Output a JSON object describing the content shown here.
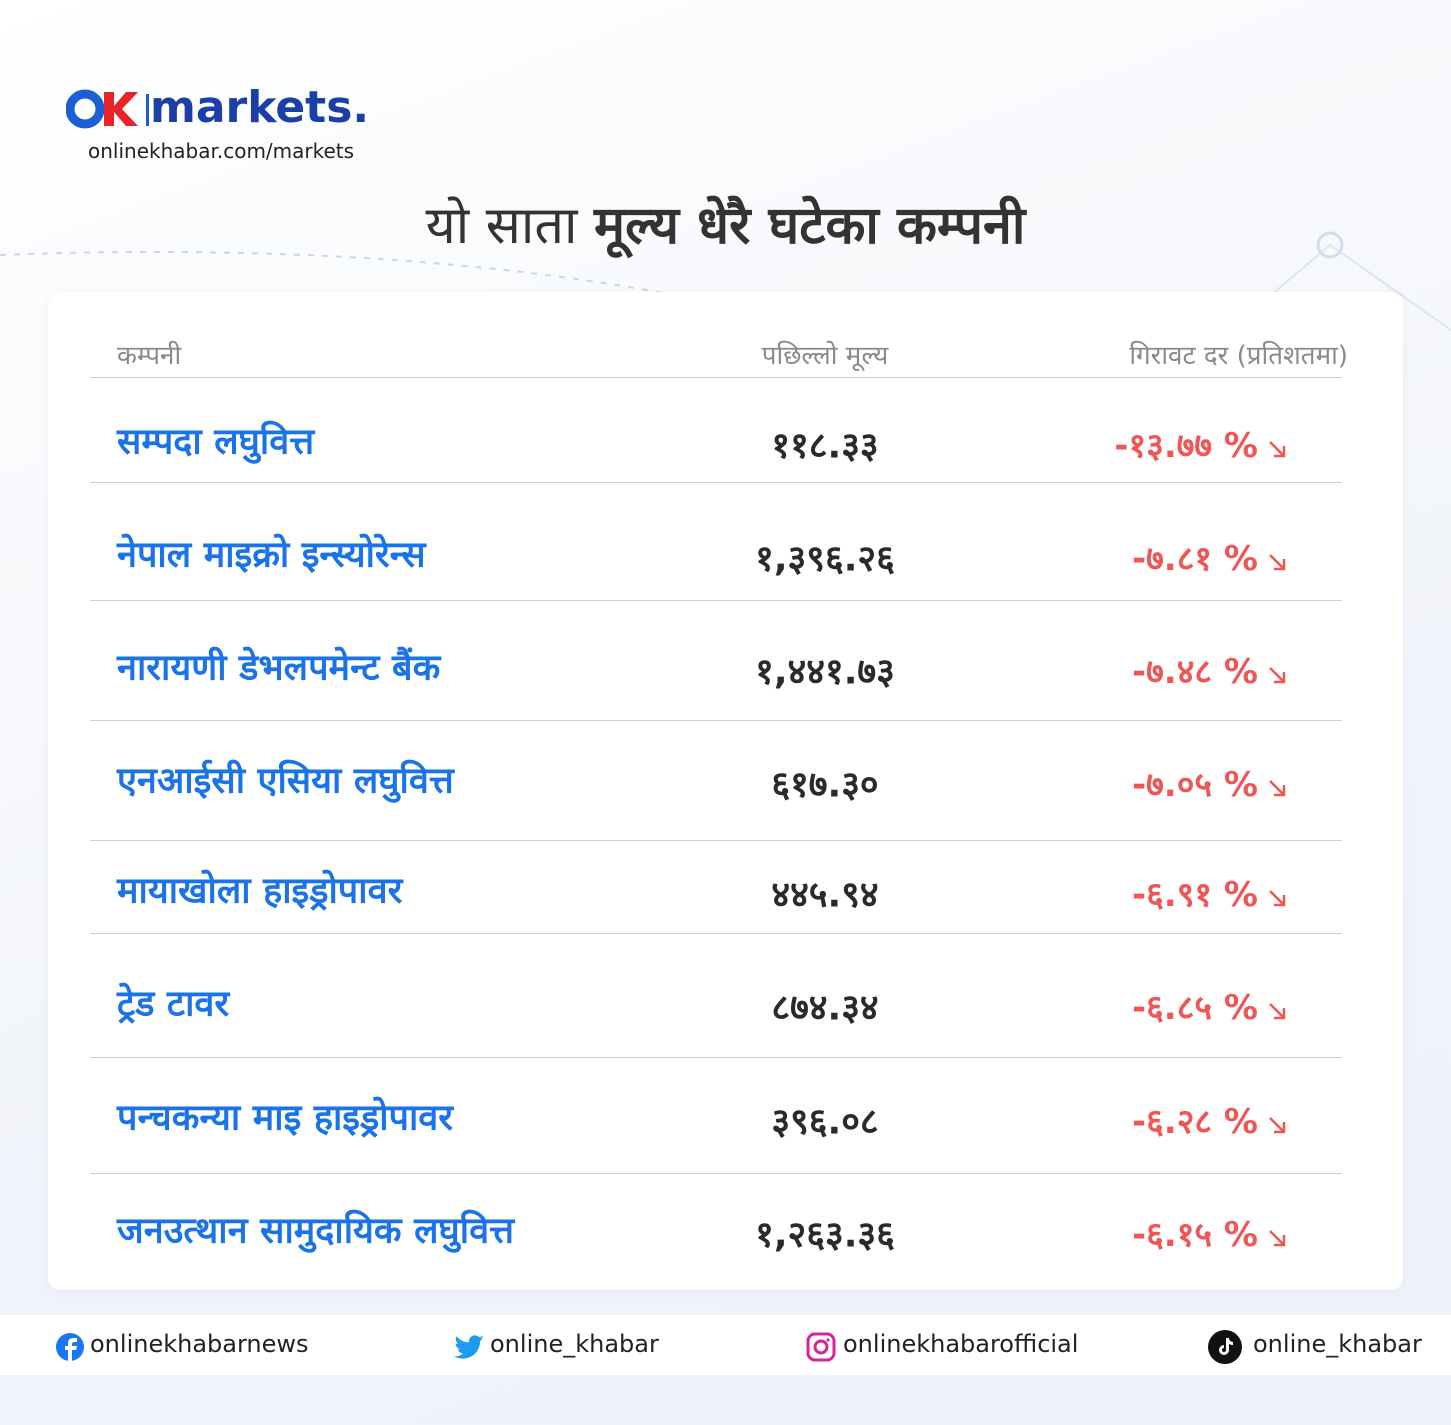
{
  "header": {
    "wordmark": "markets.",
    "url": "onlinekhabar.com/markets"
  },
  "title": {
    "light": "यो साता",
    "bold": "मूल्य धेरै घटेका कम्पनी"
  },
  "table": {
    "columns": [
      "कम्पनी",
      "पछिल्लो मूल्य",
      "गिरावट दर (प्रतिशतमा)"
    ],
    "rows": [
      [
        "सम्पदा लघुवित्त",
        "११८.३३",
        "-१३.७७ %"
      ],
      [
        "नेपाल माइक्रो इन्स्योरेन्स",
        "१,३९६.२६",
        "-७.८१ %"
      ],
      [
        "नारायणी डेभलपमेन्ट बैंक",
        "१,४४१.७३",
        "-७.४८ %"
      ],
      [
        "एनआईसी एसिया लघुवित्त",
        "६१७.३०",
        "-७.०५ %"
      ],
      [
        "मायाखोला हाइड्रोपावर",
        "४४५.९४",
        "-६.९१ %"
      ],
      [
        "ट्रेड टावर",
        "८७४.३४",
        "-६.८५ %"
      ],
      [
        "पन्चकन्या माइ हाइड्रोपावर",
        "३९६.०८",
        "-६.२८ %"
      ],
      [
        "जनउत्थान सामुदायिक लघुवित्त",
        "१,२६३.३६",
        "-६.१५ %"
      ]
    ]
  },
  "footer": {
    "social": [
      "onlinekhabarnews",
      "online_khabar",
      "onlinekhabarofficial",
      "online_khabar"
    ]
  }
}
